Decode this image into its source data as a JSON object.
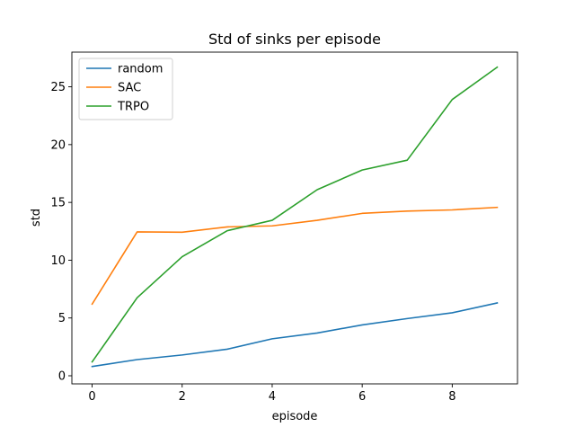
{
  "chart_data": {
    "type": "line",
    "title": "Std of sinks per episode",
    "xlabel": "episode",
    "ylabel": "std",
    "x": [
      0,
      1,
      2,
      3,
      4,
      5,
      6,
      7,
      8,
      9
    ],
    "xlim": [
      -0.45,
      9.45
    ],
    "ylim": [
      -0.7,
      28.0
    ],
    "xticks": [
      0,
      2,
      4,
      6,
      8
    ],
    "yticks": [
      0,
      5,
      10,
      15,
      20,
      25
    ],
    "grid": false,
    "legend_position": "top-left",
    "series": [
      {
        "name": "random",
        "color": "#1f77b4",
        "values": [
          0.8,
          1.4,
          1.8,
          2.3,
          3.2,
          3.7,
          4.4,
          4.95,
          5.45,
          6.3
        ]
      },
      {
        "name": "SAC",
        "color": "#ff7f0e",
        "values": [
          6.2,
          12.45,
          12.42,
          12.88,
          12.97,
          13.45,
          14.05,
          14.25,
          14.35,
          14.57
        ]
      },
      {
        "name": "TRPO",
        "color": "#2ca02c",
        "values": [
          1.2,
          6.75,
          10.3,
          12.55,
          13.45,
          16.1,
          17.8,
          18.65,
          23.9,
          26.7
        ]
      }
    ]
  }
}
